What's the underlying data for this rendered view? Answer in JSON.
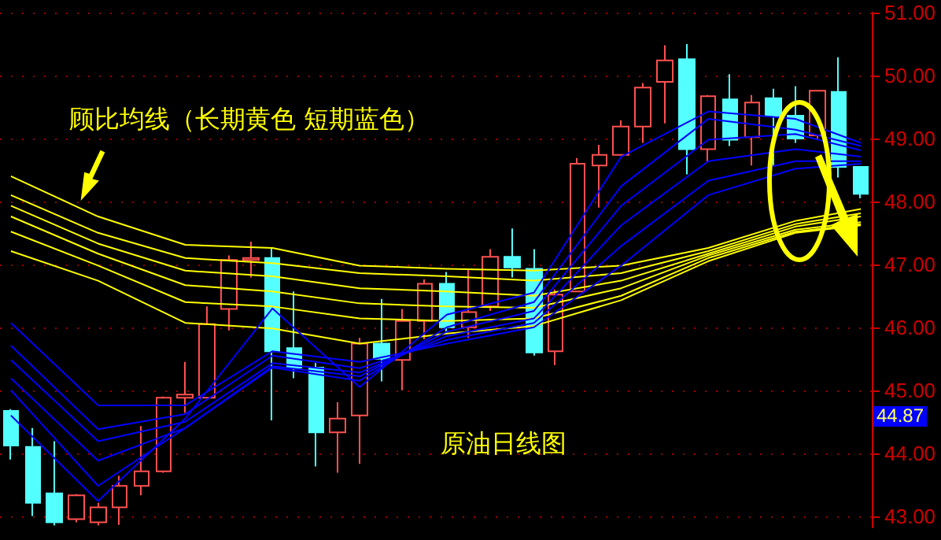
{
  "chart_data": {
    "type": "candlestick",
    "categories": [
      null,
      null,
      null,
      null,
      null,
      null,
      null,
      null,
      null,
      null,
      null,
      null,
      null,
      null,
      null,
      null,
      null,
      null,
      null,
      null,
      null,
      null,
      null,
      null,
      null,
      null,
      null,
      null,
      null,
      null,
      null,
      null,
      null,
      null,
      null,
      null,
      null,
      null,
      null,
      null
    ],
    "ylim": [
      42.82,
      51.0
    ],
    "yticks": [
      {
        "value": 43,
        "label": "43.00"
      },
      {
        "value": 44,
        "label": "44.00"
      },
      {
        "value": 45,
        "label": "45.00"
      },
      {
        "value": 46,
        "label": "46.00"
      },
      {
        "value": 47,
        "label": "47.00"
      },
      {
        "value": 48,
        "label": "48.00"
      },
      {
        "value": 49,
        "label": "49.00"
      },
      {
        "value": 50,
        "label": "50.00"
      },
      {
        "value": 51,
        "label": "51.00"
      }
    ],
    "grid": "y",
    "marker": "none",
    "annotations": [
      "顾比均线（长期黄色 短期蓝色）",
      "原油日线图",
      "44.87"
    ],
    "series": [
      {
        "colors": [
          "#54ffff",
          "#54ffff",
          "#54ffff",
          "#ff5050",
          "#ff5050",
          "#ff5050",
          "#ff5050",
          "#ff5050",
          "#ff5050",
          "#ff5050",
          "#ff5050",
          "#ff5050",
          "#54ffff",
          "#54ffff",
          "#54ffff",
          "#ff5050",
          "#ff5050",
          "#54ffff",
          "#ff5050",
          "#ff5050",
          "#54ffff",
          "#ff5050",
          "#ff5050",
          "#54ffff",
          "#54ffff",
          "#ff5050",
          "#ff5050",
          "#ff5050",
          "#ff5050",
          "#ff5050",
          "#ff5050",
          "#54ffff",
          "#ff5050",
          "#54ffff",
          "#ff5050",
          "#54ffff",
          "#54ffff",
          "#ff5050",
          "#54ffff",
          "#54ffff"
        ],
        "ohlc": [
          [
            44.67,
            44.7,
            43.9,
            44.12
          ],
          [
            44.1,
            44.4,
            43.0,
            43.21
          ],
          [
            43.36,
            44.19,
            42.85,
            42.9
          ],
          [
            42.95,
            43.35,
            42.9,
            43.33
          ],
          [
            42.9,
            43.21,
            42.85,
            43.14
          ],
          [
            43.14,
            43.64,
            42.86,
            43.48
          ],
          [
            43.48,
            44.43,
            43.33,
            43.71
          ],
          [
            43.71,
            44.9,
            43.69,
            44.88
          ],
          [
            44.88,
            45.45,
            44.64,
            44.93
          ],
          [
            44.88,
            46.33,
            44.88,
            46.05
          ],
          [
            46.29,
            47.14,
            45.95,
            47.07
          ],
          [
            47.07,
            47.36,
            46.79,
            47.1
          ],
          [
            47.1,
            47.26,
            44.52,
            45.62
          ],
          [
            45.67,
            46.57,
            45.19,
            45.36
          ],
          [
            45.36,
            45.43,
            43.79,
            44.33
          ],
          [
            44.33,
            44.81,
            43.69,
            44.55
          ],
          [
            44.6,
            45.83,
            43.83,
            45.74
          ],
          [
            45.74,
            46.45,
            45.14,
            45.5
          ],
          [
            45.48,
            46.29,
            45.0,
            46.1
          ],
          [
            46.1,
            46.76,
            45.81,
            46.69
          ],
          [
            46.69,
            46.88,
            45.9,
            46.0
          ],
          [
            46.0,
            46.93,
            45.83,
            46.24
          ],
          [
            46.33,
            47.24,
            46.26,
            47.12
          ],
          [
            47.12,
            47.57,
            46.79,
            46.95
          ],
          [
            46.93,
            47.24,
            45.55,
            45.6
          ],
          [
            45.62,
            46.6,
            45.4,
            46.52
          ],
          [
            46.57,
            48.69,
            46.57,
            48.6
          ],
          [
            48.57,
            48.9,
            47.9,
            48.74
          ],
          [
            48.74,
            49.29,
            48.74,
            49.19
          ],
          [
            49.19,
            49.88,
            48.93,
            49.81
          ],
          [
            49.9,
            50.48,
            49.24,
            50.24
          ],
          [
            50.26,
            50.5,
            48.43,
            48.83
          ],
          [
            48.83,
            49.69,
            48.62,
            49.67
          ],
          [
            49.62,
            50.02,
            48.88,
            48.98
          ],
          [
            49.02,
            49.69,
            48.57,
            49.57
          ],
          [
            49.64,
            49.79,
            48.57,
            49.36
          ],
          [
            49.36,
            49.83,
            48.93,
            49.0
          ],
          [
            49.05,
            49.76,
            49.0,
            49.76
          ],
          [
            49.74,
            50.29,
            48.38,
            48.55
          ],
          [
            48.55,
            48.55,
            48.05,
            48.12
          ]
        ]
      },
      {
        "type": "line",
        "color": "#ffff00",
        "values": [
          48.4,
          null,
          null,
          null,
          47.76,
          null,
          null,
          null,
          47.31,
          null,
          null,
          null,
          47.26,
          null,
          null,
          null,
          46.98,
          null,
          null,
          null,
          46.93,
          null,
          null,
          null,
          46.9,
          null,
          null,
          null,
          46.98,
          null,
          null,
          null,
          47.26,
          null,
          null,
          null,
          47.69,
          null,
          null,
          47.88
        ]
      },
      {
        "type": "line",
        "color": "#ffff00",
        "values": [
          48.1,
          null,
          null,
          null,
          47.5,
          null,
          null,
          null,
          47.1,
          null,
          null,
          null,
          47.02,
          null,
          null,
          null,
          46.86,
          null,
          null,
          null,
          46.81,
          null,
          null,
          null,
          46.74,
          null,
          null,
          null,
          46.86,
          null,
          null,
          null,
          47.21,
          null,
          null,
          null,
          47.64,
          null,
          null,
          47.81
        ]
      },
      {
        "type": "line",
        "color": "#ffff00",
        "values": [
          47.93,
          null,
          null,
          null,
          47.33,
          null,
          null,
          null,
          46.9,
          null,
          null,
          null,
          46.81,
          null,
          null,
          null,
          46.62,
          null,
          null,
          null,
          46.57,
          null,
          null,
          null,
          46.5,
          null,
          null,
          null,
          46.74,
          null,
          null,
          null,
          47.17,
          null,
          null,
          null,
          47.6,
          null,
          null,
          47.76
        ]
      },
      {
        "type": "line",
        "color": "#ffff00",
        "values": [
          47.76,
          null,
          null,
          null,
          47.17,
          null,
          null,
          null,
          46.67,
          null,
          null,
          null,
          46.57,
          null,
          null,
          null,
          46.38,
          null,
          null,
          null,
          46.33,
          null,
          null,
          null,
          46.31,
          null,
          null,
          null,
          46.62,
          null,
          null,
          null,
          47.14,
          null,
          null,
          null,
          47.55,
          null,
          null,
          47.67
        ]
      },
      {
        "type": "line",
        "color": "#ffff00",
        "values": [
          47.52,
          null,
          null,
          null,
          46.98,
          null,
          null,
          null,
          46.4,
          null,
          null,
          null,
          46.33,
          null,
          null,
          null,
          46.14,
          null,
          null,
          null,
          46.1,
          null,
          null,
          null,
          46.14,
          null,
          null,
          null,
          46.5,
          null,
          null,
          null,
          47.1,
          null,
          null,
          null,
          47.52,
          null,
          null,
          47.64
        ]
      },
      {
        "type": "line",
        "color": "#ffff00",
        "values": [
          47.21,
          null,
          null,
          null,
          46.74,
          null,
          null,
          null,
          46.07,
          null,
          null,
          null,
          45.98,
          null,
          null,
          null,
          45.74,
          null,
          null,
          null,
          45.9,
          null,
          null,
          null,
          46.02,
          null,
          null,
          null,
          46.43,
          null,
          null,
          null,
          47.05,
          null,
          null,
          null,
          47.5,
          null,
          null,
          47.62
        ]
      },
      {
        "type": "line",
        "color": "#0000ff",
        "values": [
          46.07,
          null,
          null,
          null,
          44.76,
          null,
          null,
          null,
          44.76,
          null,
          null,
          null,
          45.62,
          null,
          null,
          null,
          45.45,
          null,
          null,
          null,
          45.74,
          null,
          null,
          null,
          46.0,
          null,
          null,
          null,
          46.98,
          null,
          null,
          null,
          48.1,
          null,
          null,
          null,
          48.52,
          null,
          null,
          48.6
        ]
      },
      {
        "type": "line",
        "color": "#0000ff",
        "values": [
          45.71,
          null,
          null,
          null,
          44.38,
          null,
          null,
          null,
          44.62,
          null,
          null,
          null,
          45.55,
          null,
          null,
          null,
          45.35,
          null,
          null,
          null,
          45.8,
          null,
          null,
          null,
          46.07,
          null,
          null,
          null,
          47.29,
          null,
          null,
          null,
          48.33,
          null,
          null,
          null,
          48.64,
          null,
          null,
          48.64
        ]
      },
      {
        "type": "line",
        "color": "#0000ff",
        "values": [
          45.48,
          null,
          null,
          null,
          44.19,
          null,
          null,
          null,
          44.5,
          null,
          null,
          null,
          45.43,
          null,
          null,
          null,
          45.28,
          null,
          null,
          null,
          45.86,
          null,
          null,
          null,
          46.14,
          null,
          null,
          null,
          47.62,
          null,
          null,
          null,
          48.64,
          null,
          null,
          null,
          48.83,
          null,
          null,
          48.71
        ]
      },
      {
        "type": "line",
        "color": "#0000ff",
        "values": [
          45.19,
          null,
          null,
          null,
          43.88,
          null,
          null,
          null,
          44.4,
          null,
          null,
          null,
          45.38,
          null,
          null,
          null,
          45.22,
          null,
          null,
          null,
          45.93,
          null,
          null,
          null,
          46.26,
          null,
          null,
          null,
          47.93,
          null,
          null,
          null,
          48.98,
          null,
          null,
          null,
          49.07,
          null,
          null,
          48.81
        ]
      },
      {
        "type": "line",
        "color": "#0000ff",
        "values": [
          45.0,
          null,
          null,
          null,
          43.48,
          null,
          null,
          null,
          44.4,
          null,
          null,
          null,
          45.36,
          null,
          null,
          null,
          45.15,
          null,
          null,
          null,
          46.0,
          null,
          null,
          null,
          46.4,
          null,
          null,
          null,
          48.24,
          null,
          null,
          null,
          49.31,
          null,
          null,
          null,
          49.14,
          null,
          null,
          48.88
        ]
      },
      {
        "type": "line",
        "color": "#0000ff",
        "values": [
          44.6,
          null,
          null,
          null,
          43.24,
          null,
          null,
          null,
          44.55,
          null,
          null,
          null,
          46.3,
          null,
          null,
          null,
          45.05,
          null,
          null,
          null,
          46.2,
          null,
          null,
          null,
          46.55,
          null,
          null,
          null,
          48.71,
          null,
          null,
          null,
          49.43,
          null,
          null,
          null,
          49.31,
          null,
          null,
          48.93
        ]
      }
    ]
  }
}
